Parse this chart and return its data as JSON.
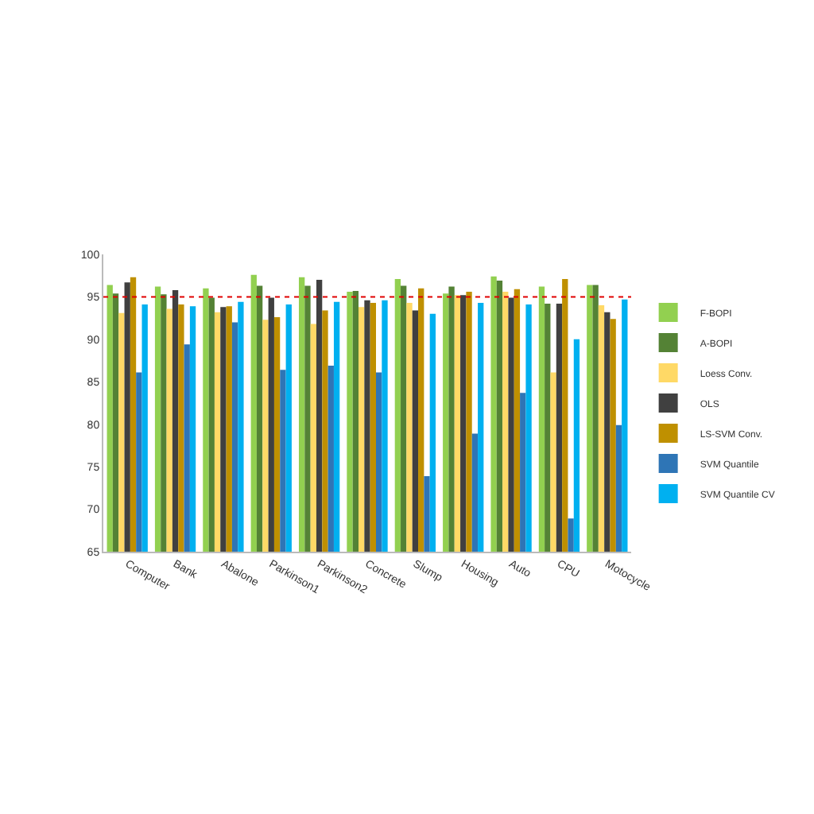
{
  "chart_data": {
    "type": "bar",
    "categories": [
      "Computer",
      "Bank",
      "Abalone",
      "Parkinson1",
      "Parkinson2",
      "Concrete",
      "Slump",
      "Housing",
      "Auto",
      "CPU",
      "Motocycle"
    ],
    "series": [
      {
        "name": "F-BOPI",
        "color": "#92d050",
        "values": [
          96.4,
          96.2,
          96.0,
          97.6,
          97.3,
          95.6,
          97.1,
          95.4,
          97.4,
          96.2,
          96.4
        ]
      },
      {
        "name": "A-BOPI",
        "color": "#548235",
        "values": [
          95.4,
          95.3,
          94.9,
          96.3,
          96.3,
          95.7,
          96.3,
          96.2,
          96.9,
          94.2,
          96.4
        ]
      },
      {
        "name": "Loess Conv.",
        "color": "#ffd966",
        "values": [
          93.1,
          93.6,
          93.2,
          92.3,
          91.8,
          93.8,
          94.3,
          95.2,
          95.6,
          86.1,
          94.0
        ]
      },
      {
        "name": "OLS",
        "color": "#404040",
        "values": [
          96.7,
          95.8,
          93.8,
          94.9,
          97.0,
          94.6,
          93.4,
          95.2,
          94.9,
          94.2,
          93.2
        ]
      },
      {
        "name": "LS-SVM Conv.",
        "color": "#bf9000",
        "values": [
          97.3,
          94.1,
          93.9,
          92.6,
          93.4,
          94.3,
          96.0,
          95.6,
          95.9,
          97.1,
          92.4
        ]
      },
      {
        "name": "SVM Quantile",
        "color": "#2e75b6",
        "values": [
          86.1,
          89.4,
          92.0,
          86.4,
          86.9,
          86.1,
          73.9,
          78.9,
          83.7,
          68.9,
          79.9
        ]
      },
      {
        "name": "SVM Quantile CV",
        "color": "#00b0f0",
        "values": [
          94.1,
          93.9,
          94.4,
          94.1,
          94.4,
          94.6,
          93.0,
          94.3,
          94.1,
          90.0,
          94.7
        ]
      }
    ],
    "ylim": [
      65,
      100
    ],
    "yticks": [
      65,
      70,
      75,
      80,
      85,
      90,
      95,
      100
    ],
    "grid": false,
    "legend": "right",
    "ref_lines": [
      {
        "axis": "y",
        "value": 95,
        "color": "#e00000",
        "line_style": "dotted"
      }
    ]
  }
}
